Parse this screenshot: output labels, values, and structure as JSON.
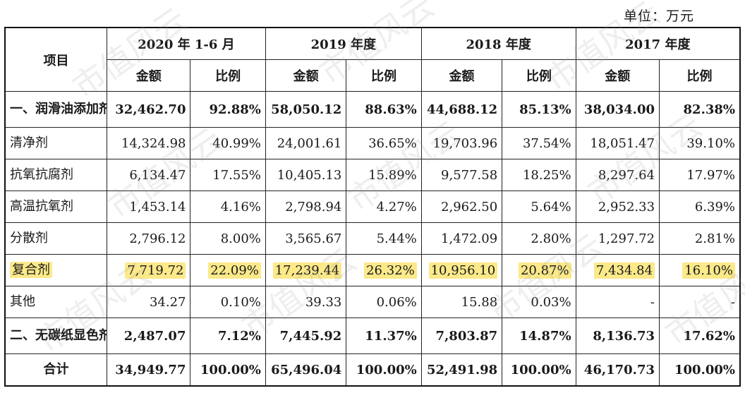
{
  "unit_label": "单位：万元",
  "watermark_text": "市值风云",
  "header": {
    "item_label": "项目",
    "periods": [
      "2020 年 1-6 月",
      "2019 年度",
      "2018 年度",
      "2017 年度"
    ],
    "amount_label": "金额",
    "ratio_label": "比例"
  },
  "rows": [
    {
      "name": "一、润滑油添加剂",
      "cells": [
        "32,462.70",
        "92.88%",
        "58,050.12",
        "88.63%",
        "44,688.12",
        "85.13%",
        "38,034.00",
        "82.38%"
      ]
    },
    {
      "name": "清净剂",
      "cells": [
        "14,324.98",
        "40.99%",
        "24,001.61",
        "36.65%",
        "19,703.96",
        "37.54%",
        "18,051.47",
        "39.10%"
      ]
    },
    {
      "name": "抗氧抗腐剂",
      "cells": [
        "6,134.47",
        "17.55%",
        "10,405.13",
        "15.89%",
        "9,577.58",
        "18.25%",
        "8,297.64",
        "17.97%"
      ]
    },
    {
      "name": "高温抗氧剂",
      "cells": [
        "1,453.14",
        "4.16%",
        "2,798.94",
        "4.27%",
        "2,962.50",
        "5.64%",
        "2,952.33",
        "6.39%"
      ]
    },
    {
      "name": "分散剂",
      "cells": [
        "2,796.12",
        "8.00%",
        "3,565.67",
        "5.44%",
        "1,472.09",
        "2.80%",
        "1,297.72",
        "2.81%"
      ]
    },
    {
      "name": "复合剂",
      "cells": [
        "7,719.72",
        "22.09%",
        "17,239.44",
        "26.32%",
        "10,956.10",
        "20.87%",
        "7,434.84",
        "16.10%"
      ]
    },
    {
      "name": "其他",
      "cells": [
        "34.27",
        "0.10%",
        "39.33",
        "0.06%",
        "15.88",
        "0.03%",
        "-",
        "-"
      ]
    },
    {
      "name": "二、无碳纸显色剂",
      "cells": [
        "2,487.07",
        "7.12%",
        "7,445.92",
        "11.37%",
        "7,803.87",
        "14.87%",
        "8,136.73",
        "17.62%"
      ]
    },
    {
      "name": "合计",
      "cells": [
        "34,949.77",
        "100.00%",
        "65,496.04",
        "100.00%",
        "52,491.98",
        "100.00%",
        "46,170.73",
        "100.00%"
      ]
    }
  ],
  "highlight_color": "#fbe98a"
}
